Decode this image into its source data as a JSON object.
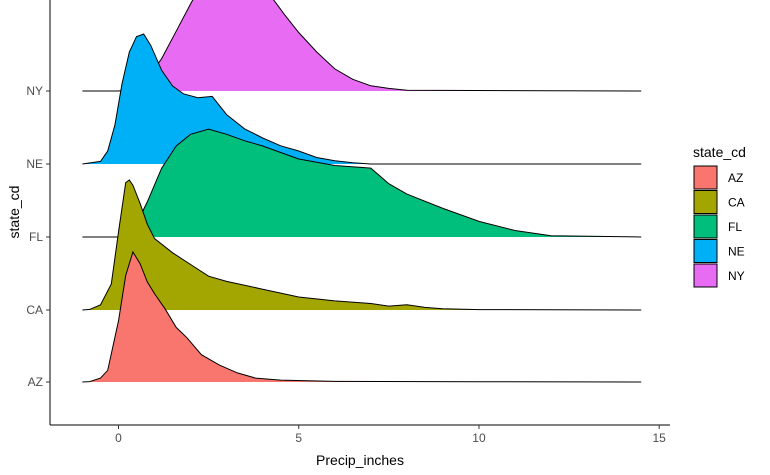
{
  "chart_data": {
    "type": "ridgeline",
    "xlabel": "Precip_inches",
    "ylabel": "state_cd",
    "xlim": [
      -1.9,
      15.3
    ],
    "x_ticks": [
      0,
      5,
      10,
      15
    ],
    "categories": [
      "AZ",
      "CA",
      "FL",
      "NE",
      "NY"
    ],
    "grid": false,
    "legend": {
      "title": "state_cd",
      "position": "right",
      "entries": [
        "AZ",
        "CA",
        "FL",
        "NE",
        "NY"
      ]
    },
    "series": [
      {
        "name": "AZ",
        "color": "#F8766D",
        "x": [
          -1,
          -0.8,
          -0.5,
          -0.3,
          0,
          0.2,
          0.4,
          0.6,
          0.8,
          1.0,
          1.3,
          1.6,
          1.9,
          2.3,
          2.8,
          3.3,
          3.8,
          4.5,
          6,
          10,
          14.5
        ],
        "density": [
          0,
          0.003,
          0.03,
          0.09,
          0.47,
          0.82,
          1.0,
          0.91,
          0.77,
          0.68,
          0.56,
          0.42,
          0.34,
          0.21,
          0.13,
          0.07,
          0.03,
          0.015,
          0.005,
          0.002,
          0
        ]
      },
      {
        "name": "CA",
        "color": "#A3A500",
        "x": [
          -1,
          -0.8,
          -0.5,
          -0.2,
          0,
          0.2,
          0.3,
          0.4,
          0.6,
          0.8,
          1.0,
          1.5,
          2.0,
          2.5,
          3.0,
          4.0,
          5.0,
          6.0,
          7.0,
          7.5,
          8.0,
          8.5,
          9.0,
          10,
          14.5
        ],
        "density": [
          0,
          0.005,
          0.04,
          0.2,
          0.6,
          0.98,
          1.0,
          0.96,
          0.82,
          0.66,
          0.55,
          0.44,
          0.35,
          0.26,
          0.22,
          0.16,
          0.1,
          0.07,
          0.05,
          0.03,
          0.04,
          0.02,
          0.01,
          0.003,
          0
        ]
      },
      {
        "name": "FL",
        "color": "#00BF7D",
        "x": [
          -1,
          0,
          0.5,
          0.8,
          1.2,
          1.6,
          2.0,
          2.5,
          3.0,
          3.5,
          4.0,
          5.0,
          6.0,
          7.0,
          7.5,
          8.0,
          9.0,
          10,
          11,
          12,
          14.5
        ],
        "density": [
          0,
          0,
          0.1,
          0.27,
          0.53,
          0.7,
          0.79,
          0.83,
          0.79,
          0.74,
          0.7,
          0.6,
          0.55,
          0.53,
          0.41,
          0.33,
          0.22,
          0.12,
          0.05,
          0.01,
          0
        ]
      },
      {
        "name": "NE",
        "color": "#00B0F6",
        "x": [
          -1,
          -0.5,
          -0.3,
          -0.1,
          0.1,
          0.3,
          0.5,
          0.7,
          0.9,
          1.2,
          1.5,
          1.8,
          2.2,
          2.6,
          3.0,
          3.5,
          4.0,
          4.5,
          5.0,
          5.5,
          6.0,
          6.5,
          7.0,
          14.5
        ],
        "density": [
          0,
          0.02,
          0.1,
          0.3,
          0.62,
          0.86,
          0.98,
          1.0,
          0.91,
          0.72,
          0.6,
          0.54,
          0.51,
          0.52,
          0.38,
          0.27,
          0.2,
          0.14,
          0.1,
          0.05,
          0.025,
          0.01,
          0,
          0
        ]
      },
      {
        "name": "NY",
        "color": "#E76BF3",
        "x": [
          -1,
          0,
          0.5,
          0.8,
          1.2,
          1.6,
          2.0,
          2.4,
          2.8,
          3.0,
          3.4,
          3.8,
          4.2,
          4.6,
          5.0,
          5.5,
          6.0,
          6.5,
          7.0,
          7.5,
          8.0,
          14.5
        ],
        "density": [
          0,
          0,
          0.02,
          0.09,
          0.25,
          0.46,
          0.67,
          0.87,
          0.99,
          1.0,
          0.97,
          0.87,
          0.74,
          0.59,
          0.45,
          0.3,
          0.17,
          0.09,
          0.04,
          0.02,
          0.005,
          0
        ]
      }
    ]
  }
}
